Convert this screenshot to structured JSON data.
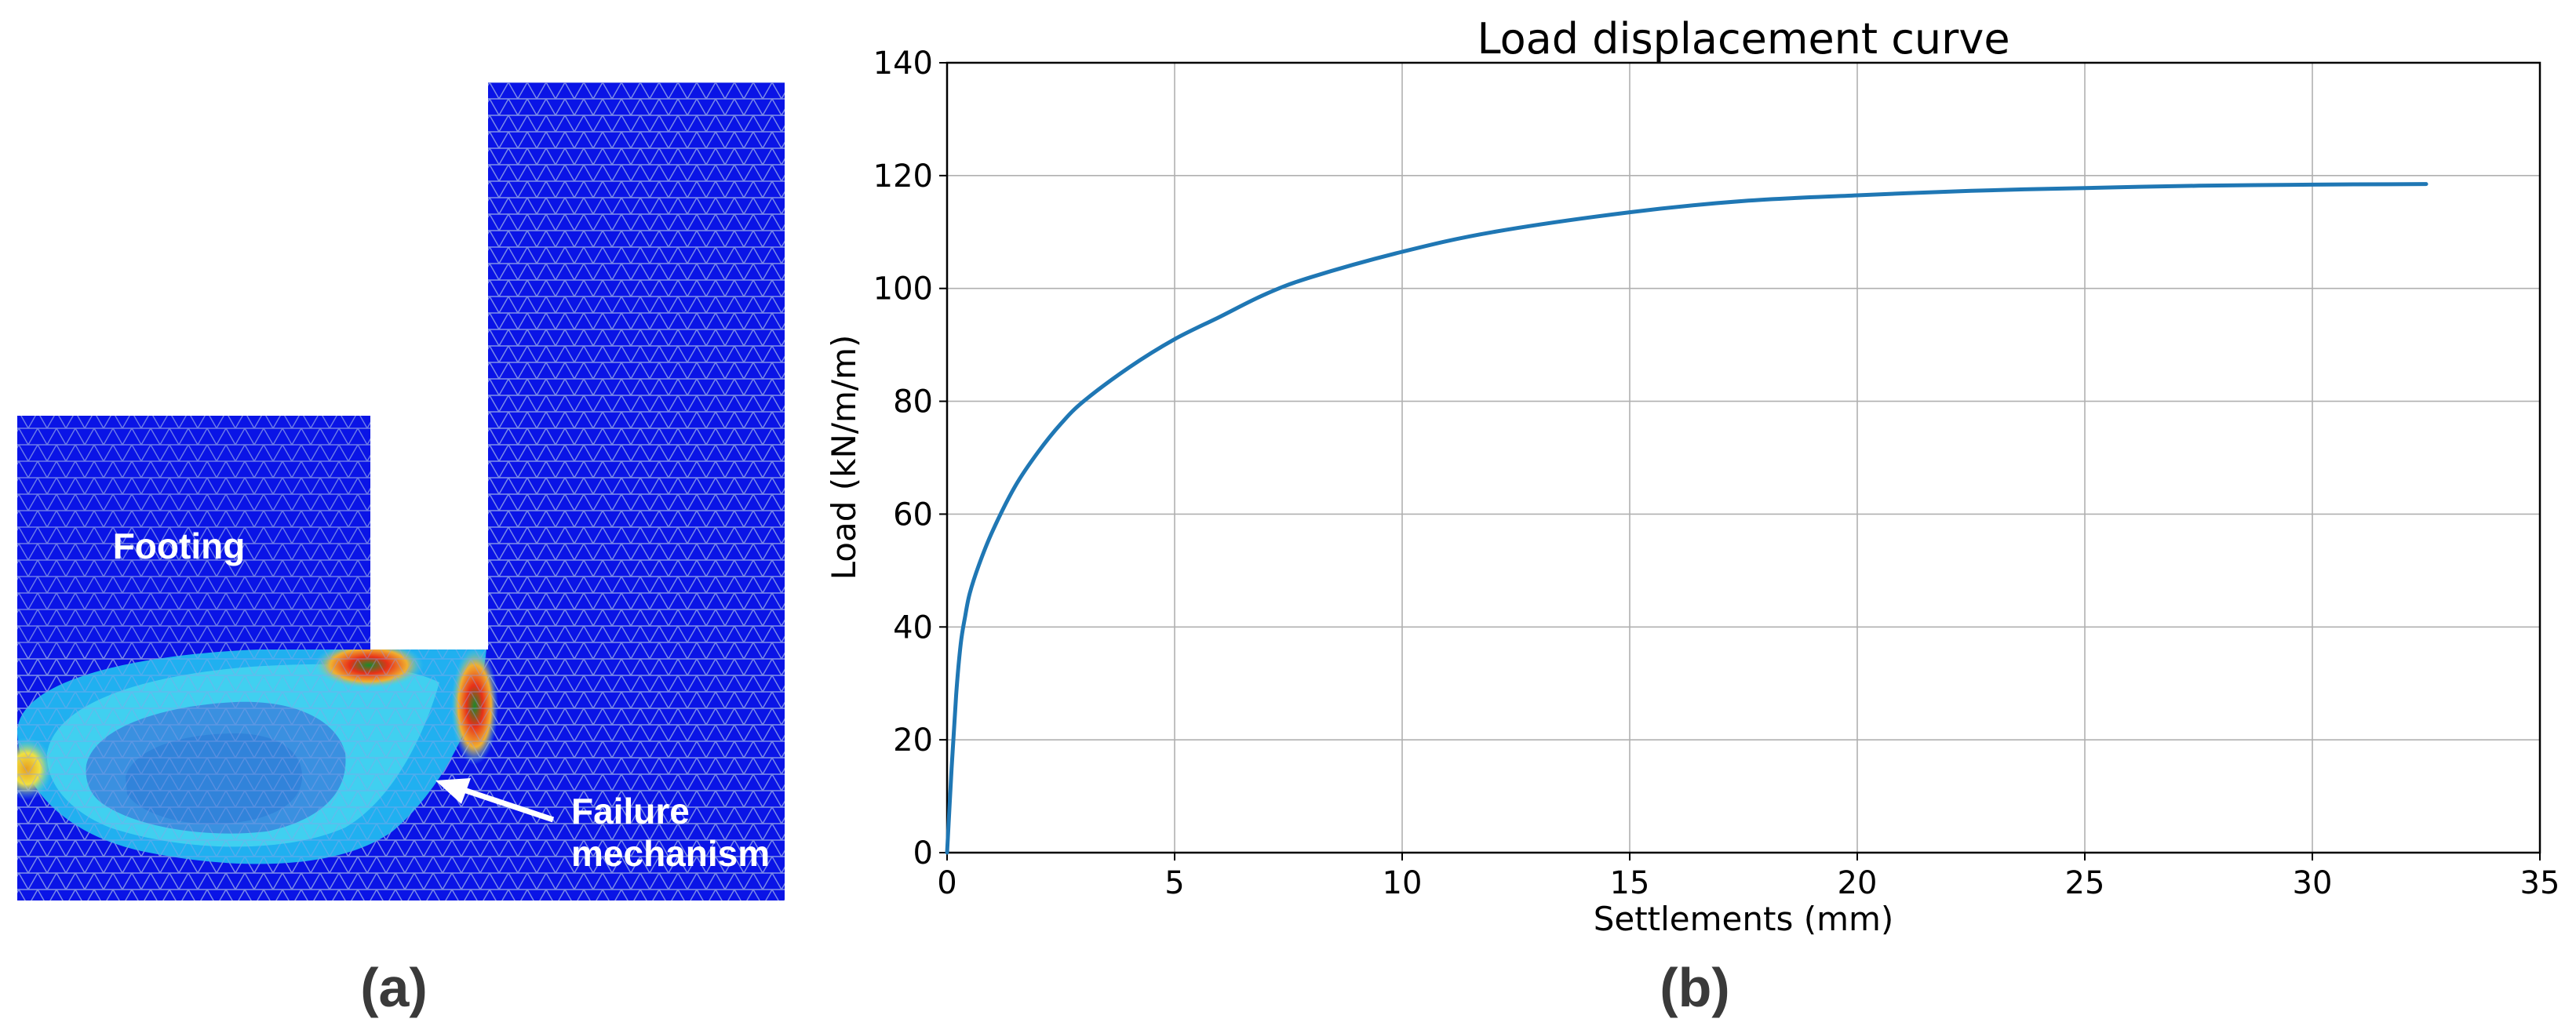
{
  "panel_a": {
    "label_footing": "Footing",
    "label_failure_line1": "Failure",
    "label_failure_line2": "mechanism",
    "caption": "(a)",
    "colors": {
      "mesh_bg": "#0a14e6",
      "mesh_line": "#8fa0e8",
      "band_outer": "#22b8f0",
      "band_inner": "#40d0f0",
      "core": "#3a90e0",
      "hot1": "#f0e040",
      "hot2": "#e83018",
      "hot3": "#1a8a2a"
    }
  },
  "panel_b": {
    "caption": "(b)"
  },
  "chart_data": {
    "type": "line",
    "title": "Load displacement curve",
    "xlabel": "Settlements (mm)",
    "ylabel": "Load (kN/m/m)",
    "xlim": [
      0,
      35
    ],
    "ylim": [
      0,
      140
    ],
    "xticks": [
      0,
      5,
      10,
      15,
      20,
      25,
      30,
      35
    ],
    "yticks": [
      0,
      20,
      40,
      60,
      80,
      100,
      120,
      140
    ],
    "grid": true,
    "line_color": "#1f77b4",
    "series": [
      {
        "x": [
          0,
          0.1,
          0.2,
          0.3,
          0.4,
          0.5,
          0.7,
          1.0,
          1.5,
          2.0,
          2.5,
          3.0,
          4.0,
          5.0,
          6.0,
          7.0,
          8.0,
          10.0,
          12.0,
          15.0,
          17.5,
          20.0,
          22.5,
          25.0,
          27.5,
          30.0,
          32.5
        ],
        "y": [
          0,
          15,
          28,
          37,
          42,
          46,
          51,
          57,
          65,
          71,
          76,
          80,
          86,
          91,
          95,
          99,
          102,
          106.5,
          110,
          113.5,
          115.5,
          116.5,
          117.3,
          117.8,
          118.2,
          118.4,
          118.5
        ]
      }
    ]
  }
}
